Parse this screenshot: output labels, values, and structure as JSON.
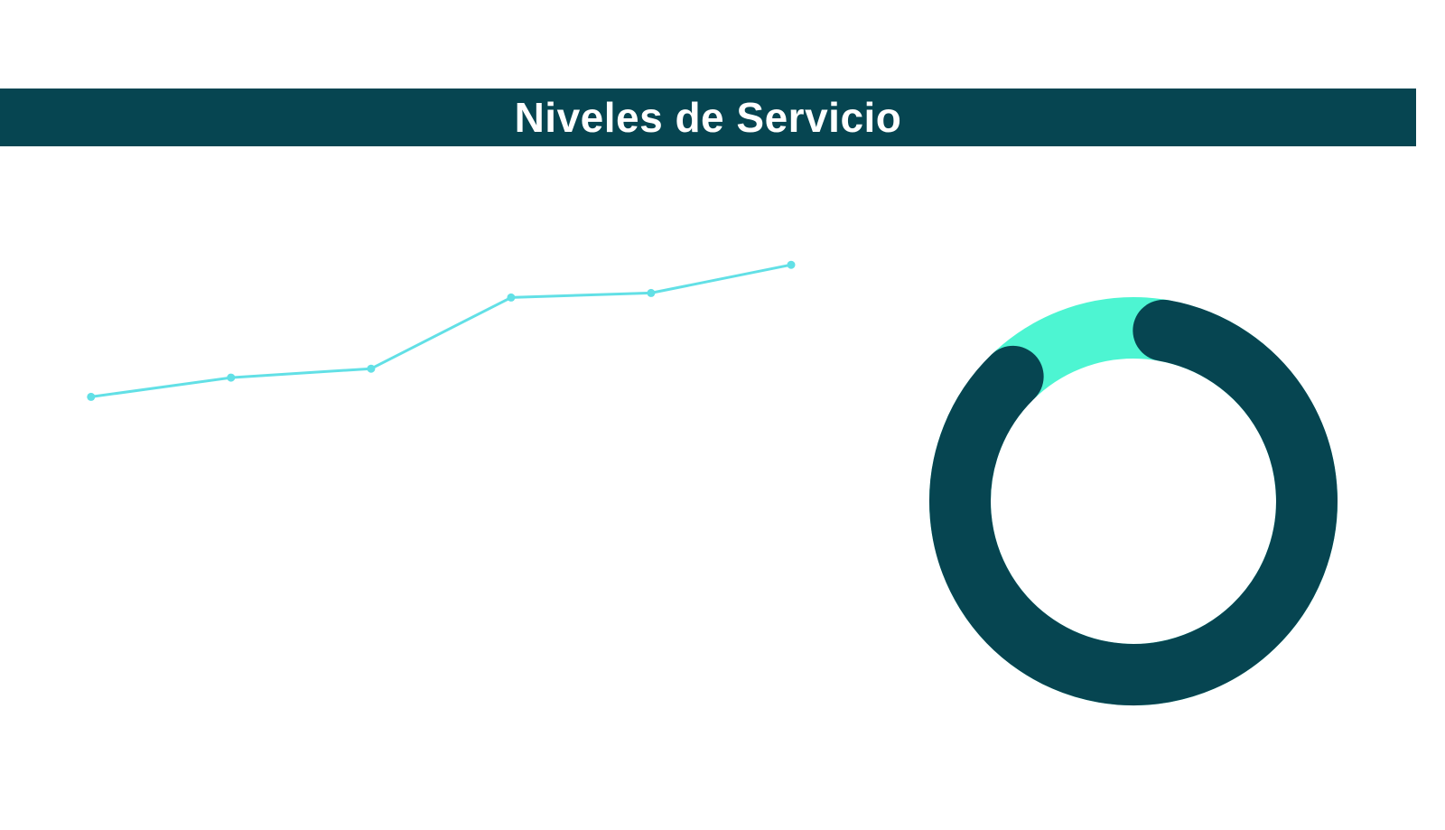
{
  "header": {
    "title": "Niveles de Servicio"
  },
  "colors": {
    "header_bg": "#064551",
    "header_text": "#ffffff",
    "line": "#62E0E6",
    "donut_main": "#064551",
    "donut_remainder": "#4DF5D2"
  },
  "chart_data": [
    {
      "type": "line",
      "title": "",
      "x": [
        1,
        2,
        3,
        4,
        5,
        6
      ],
      "series": [
        {
          "values": [
            58,
            64.5,
            67.5,
            91.5,
            93,
            102.5
          ]
        }
      ],
      "xlabel": "",
      "ylabel": "",
      "xlim": [
        0.35,
        6.8
      ],
      "ylim": [
        0,
        140
      ],
      "grid": false,
      "legend": "none"
    },
    {
      "type": "pie",
      "variant": "donut",
      "title": "",
      "values": [
        85,
        15
      ],
      "colors": [
        "#064551",
        "#4DF5D2"
      ],
      "start_angle_deg": 10,
      "rounded_caps": true
    }
  ]
}
